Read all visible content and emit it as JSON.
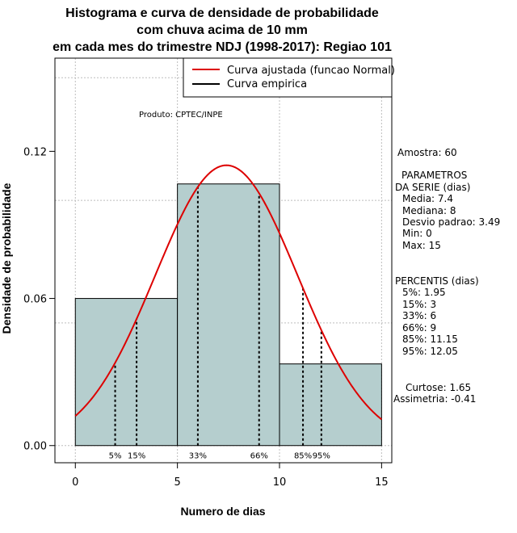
{
  "chart_data": {
    "type": "bar",
    "title_lines": [
      "Histograma e curva de densidade de probabilidade",
      "com chuva acima de 10 mm",
      "em cada mes do trimestre NDJ (1998-2017): Regiao 101"
    ],
    "xlabel": "Numero de dias",
    "ylabel": "Densidade de probabilidade",
    "xlim": [
      -1,
      15.5
    ],
    "ylim": [
      -0.007,
      0.158
    ],
    "xticks": [
      0,
      5,
      10,
      15
    ],
    "xtick_labels": [
      "0",
      "5",
      "10",
      "15"
    ],
    "yticks": [
      0.0,
      0.06,
      0.12
    ],
    "ytick_labels": [
      "0.00",
      "0.06",
      "0.12"
    ],
    "grid_x": [
      0,
      5,
      10,
      15
    ],
    "grid_y": [
      0,
      0.05,
      0.1,
      0.15
    ],
    "grid": true,
    "bins": [
      {
        "x0": 0,
        "x1": 5,
        "density": 0.06
      },
      {
        "x0": 5,
        "x1": 10,
        "density": 0.1067
      },
      {
        "x0": 10,
        "x1": 15,
        "density": 0.0333
      }
    ],
    "bar_color": "#b5cece",
    "normal_curve": {
      "mean": 7.4,
      "sd": 3.49,
      "color": "#dd0000"
    },
    "percentiles": [
      {
        "label": "5%",
        "value": 1.95
      },
      {
        "label": "15%",
        "value": 3
      },
      {
        "label": "33%",
        "value": 6
      },
      {
        "label": "66%",
        "value": 9
      },
      {
        "label": "85%",
        "value": 11.15
      },
      {
        "label": "95%",
        "value": 12.05
      }
    ],
    "legend": {
      "position": "top-right",
      "entries": [
        {
          "label": "Curva ajustada (funcao Normal)",
          "color": "#dd0000"
        },
        {
          "label": "Curva empirica",
          "color": "#000000"
        }
      ]
    },
    "annotation": "Produto: CPTEC/INPE",
    "side_panel": {
      "amostra": "Amostra: 60",
      "parametros": [
        "PARAMETROS",
        "DA SERIE (dias)",
        "Media: 7.4",
        "Mediana: 8",
        "Desvio padrao: 3.49",
        "Min: 0",
        "Max: 15"
      ],
      "percentis": [
        "PERCENTIS (dias)",
        "5%: 1.95",
        "15%: 3",
        "33%: 6",
        "66%: 9",
        "85%: 11.15",
        "95%: 12.05"
      ],
      "curtose": "Curtose: 1.65",
      "assimetria": "Assimetria: -0.41"
    }
  }
}
